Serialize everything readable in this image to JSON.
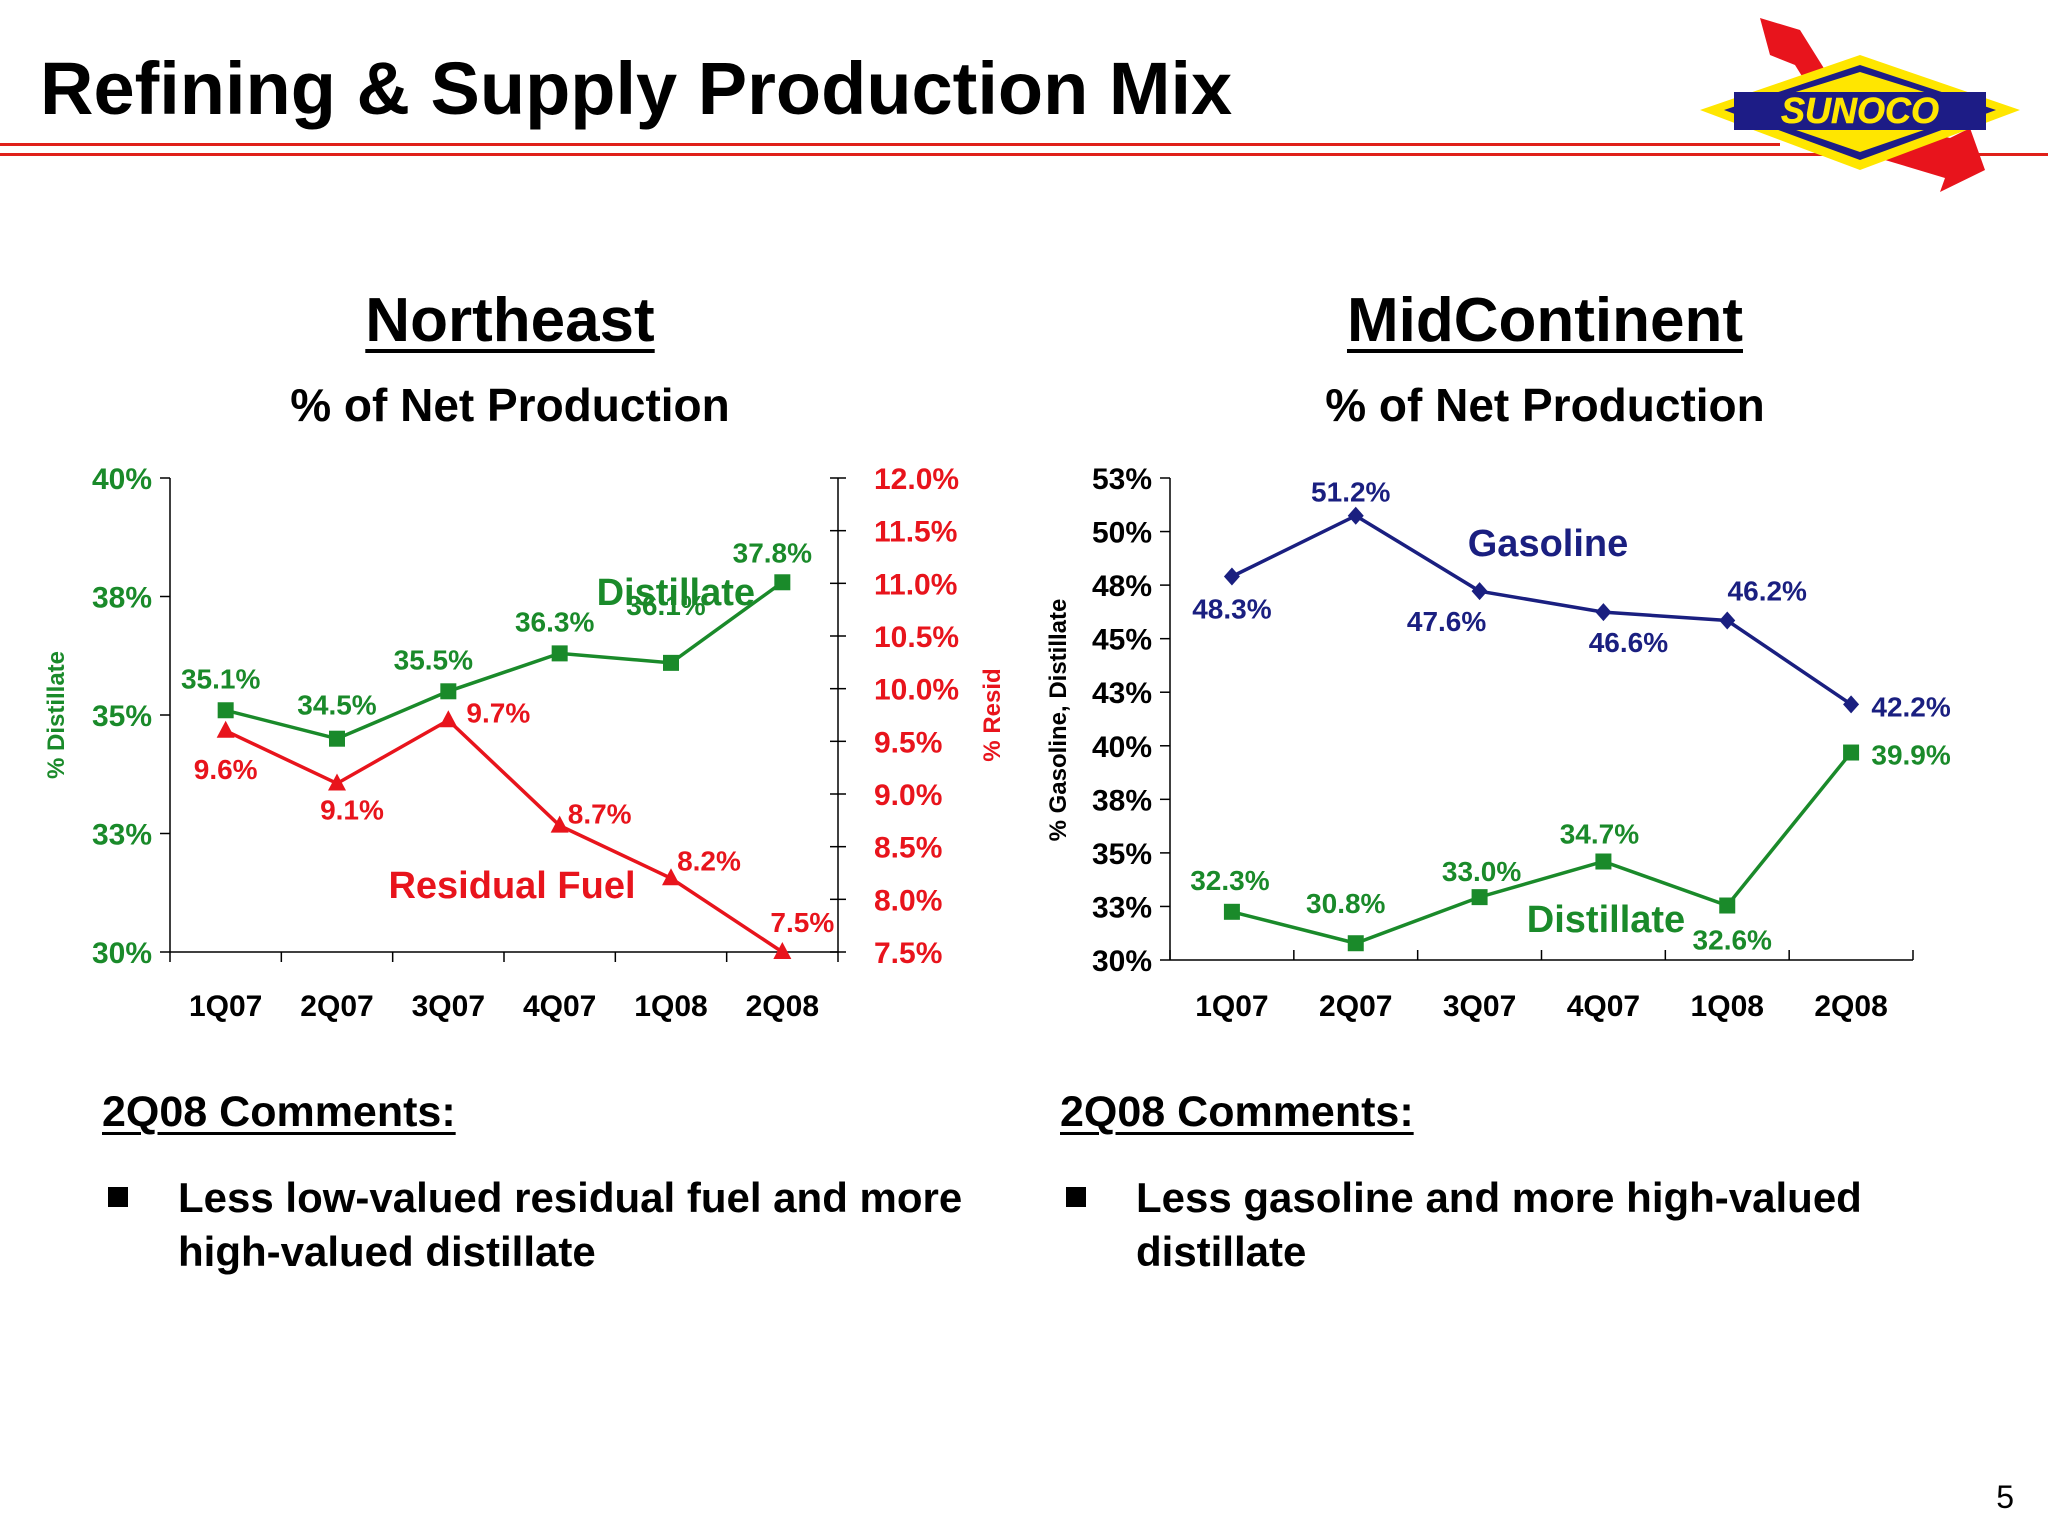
{
  "slide": {
    "title": "Refining & Supply Production Mix",
    "page_number": "5",
    "colors": {
      "red_rule": "#e0201a",
      "green": "#1a8a2a",
      "red": "#e8141c",
      "navy": "#1a1f80"
    }
  },
  "logo": {
    "text": "SUNOCO",
    "colors": {
      "yellow": "#ffe600",
      "blue": "#1d1c86",
      "red": "#e8141c"
    }
  },
  "northeast": {
    "heading": "Northeast",
    "subheading": "% of Net Production",
    "comments_heading": "2Q08 Comments:",
    "comments": [
      "Less low-valued residual fuel and more high-valued distillate"
    ]
  },
  "midcontinent": {
    "heading": "MidContinent",
    "subheading": "% of Net Production",
    "comments_heading": "2Q08 Comments:",
    "comments": [
      "Less gasoline and more high-valued distillate"
    ]
  },
  "chart_data": [
    {
      "type": "line",
      "categories": [
        "1Q07",
        "2Q07",
        "3Q07",
        "4Q07",
        "1Q08",
        "2Q08"
      ],
      "ylabel": "% Distillate",
      "y2label": "% Resid",
      "ylim": [
        30,
        40
      ],
      "y_ticks": [
        "30%",
        "33%",
        "35%",
        "38%",
        "40%"
      ],
      "y2lim": [
        7.5,
        12.0
      ],
      "y2_ticks": [
        "7.5%",
        "8.0%",
        "8.5%",
        "9.0%",
        "9.5%",
        "10.0%",
        "10.5%",
        "11.0%",
        "11.5%",
        "12.0%"
      ],
      "series": [
        {
          "name": "Distillate",
          "axis": "left",
          "color": "#1a8a2a",
          "marker": "square",
          "values": [
            35.1,
            34.5,
            35.5,
            36.3,
            36.1,
            37.8
          ],
          "labels": [
            "35.1%",
            "34.5%",
            "35.5%",
            "36.3%",
            "36.1%",
            "37.8%"
          ]
        },
        {
          "name": "Residual Fuel",
          "axis": "right",
          "color": "#e8141c",
          "marker": "triangle",
          "values": [
            9.6,
            9.1,
            9.7,
            8.7,
            8.2,
            7.5
          ],
          "labels": [
            "9.6%",
            "9.1%",
            "9.7%",
            "8.7%",
            "8.2%",
            "7.5%"
          ]
        }
      ]
    },
    {
      "type": "line",
      "categories": [
        "1Q07",
        "2Q07",
        "3Q07",
        "4Q07",
        "1Q08",
        "2Q08"
      ],
      "ylabel": "% Gasoline, Distillate",
      "ylim": [
        30,
        53
      ],
      "y_ticks": [
        "30%",
        "33%",
        "35%",
        "38%",
        "40%",
        "43%",
        "45%",
        "48%",
        "50%",
        "53%"
      ],
      "series": [
        {
          "name": "Gasoline",
          "color": "#1a1f80",
          "marker": "diamond",
          "values": [
            48.3,
            51.2,
            47.6,
            46.6,
            46.2,
            42.2
          ],
          "labels": [
            "48.3%",
            "51.2%",
            "47.6%",
            "46.6%",
            "46.2%",
            "42.2%"
          ]
        },
        {
          "name": "Distillate",
          "color": "#1a8a2a",
          "marker": "square",
          "values": [
            32.3,
            30.8,
            33.0,
            34.7,
            32.6,
            39.9
          ],
          "labels": [
            "32.3%",
            "30.8%",
            "33.0%",
            "34.7%",
            "32.6%",
            "39.9%"
          ]
        }
      ]
    }
  ]
}
